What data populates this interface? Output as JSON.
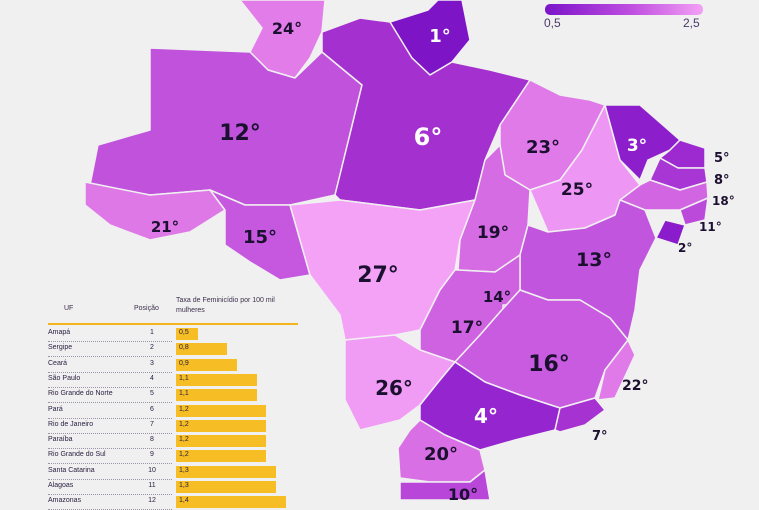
{
  "legend": {
    "min_label": "0,5",
    "max_label": "2,5",
    "colors": {
      "low": "#7b14c9",
      "mid": "#c04ee0",
      "high": "#f3a0f5"
    }
  },
  "map": {
    "states": [
      {
        "id": "roraima",
        "rank": "24°",
        "color": "#e27ce9"
      },
      {
        "id": "amapa",
        "rank": "1°",
        "color": "#7d14c6"
      },
      {
        "id": "amazonas",
        "rank": "12°",
        "color": "#c052dc"
      },
      {
        "id": "para",
        "rank": "6°",
        "color": "#a530d0"
      },
      {
        "id": "acre",
        "rank": "21°",
        "color": "#de78e6"
      },
      {
        "id": "rondonia",
        "rank": "15°",
        "color": "#c558df"
      },
      {
        "id": "mato-grosso",
        "rank": "27°",
        "color": "#f3a2f6"
      },
      {
        "id": "maranhao",
        "rank": "23°",
        "color": "#e07ae8"
      },
      {
        "id": "piaui",
        "rank": "25°",
        "color": "#ee96f3"
      },
      {
        "id": "ceara",
        "rank": "3°",
        "color": "#8d1ecc"
      },
      {
        "id": "tocantins",
        "rank": "19°",
        "color": "#d66ce3"
      },
      {
        "id": "bahia",
        "rank": "13°",
        "color": "#c255dd"
      },
      {
        "id": "distrito-federal",
        "rank": "14°",
        "color": "#c85cdf"
      },
      {
        "id": "goias",
        "rank": "17°",
        "color": "#ce62e1"
      },
      {
        "id": "minas-gerais",
        "rank": "16°",
        "color": "#c85bdf"
      },
      {
        "id": "mato-grosso-do-sul",
        "rank": "26°",
        "color": "#f09cf4"
      },
      {
        "id": "espirito-santo",
        "rank": "22°",
        "color": "#e07ae8"
      },
      {
        "id": "sao-paulo",
        "rank": "4°",
        "color": "#9526cf"
      },
      {
        "id": "parana",
        "rank": "20°",
        "color": "#d96fe5"
      },
      {
        "id": "santa-catarina",
        "rank": "10°",
        "color": "#b846d9"
      },
      {
        "id": "rio-de-janeiro",
        "rank": "7°",
        "color": "#a532d1"
      },
      {
        "id": "rio-grande-do-norte",
        "rank": "5°",
        "color": "#9c2ad0"
      },
      {
        "id": "paraiba",
        "rank": "8°",
        "color": "#a836d4"
      },
      {
        "id": "pernambuco",
        "rank": "18°",
        "color": "#d266e2"
      },
      {
        "id": "alagoas",
        "rank": "11°",
        "color": "#bb4ada"
      },
      {
        "id": "sergipe",
        "rank": "2°",
        "color": "#8b1ccb"
      }
    ]
  },
  "table": {
    "header": {
      "uf": "UF",
      "position": "Posição",
      "rate": "Taxa de Feminicídio por 100 mil mulheres"
    },
    "rows": [
      {
        "uf": "Amapá",
        "position": "1",
        "rate": "0,5",
        "value": 0.5
      },
      {
        "uf": "Sergipe",
        "position": "2",
        "rate": "0,8",
        "value": 0.8
      },
      {
        "uf": "Ceará",
        "position": "3",
        "rate": "0,9",
        "value": 0.9
      },
      {
        "uf": "São Paulo",
        "position": "4",
        "rate": "1,1",
        "value": 1.1
      },
      {
        "uf": "Rio Grande do Norte",
        "position": "5",
        "rate": "1,1",
        "value": 1.1
      },
      {
        "uf": "Pará",
        "position": "6",
        "rate": "1,2",
        "value": 1.2
      },
      {
        "uf": "Rio de Janeiro",
        "position": "7",
        "rate": "1,2",
        "value": 1.2
      },
      {
        "uf": "Paraíba",
        "position": "8",
        "rate": "1,2",
        "value": 1.2
      },
      {
        "uf": "Rio Grande do Sul",
        "position": "9",
        "rate": "1,2",
        "value": 1.2
      },
      {
        "uf": "Santa Catarina",
        "position": "10",
        "rate": "1,3",
        "value": 1.3
      },
      {
        "uf": "Alagoas",
        "position": "11",
        "rate": "1,3",
        "value": 1.3
      },
      {
        "uf": "Amazonas",
        "position": "12",
        "rate": "1,4",
        "value": 1.4
      }
    ]
  }
}
